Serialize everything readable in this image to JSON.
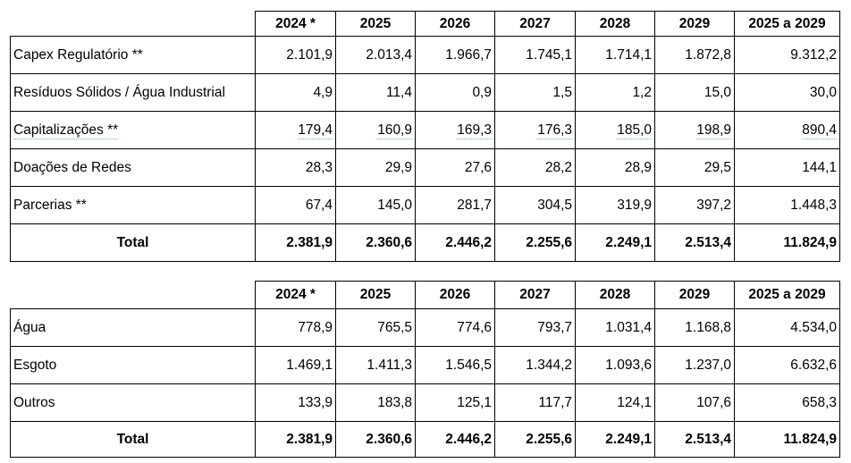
{
  "table_investment_type": {
    "headers": [
      "2024 *",
      "2025",
      "2026",
      "2027",
      "2028",
      "2029",
      "2025 a 2029"
    ],
    "rows": [
      {
        "label": "Capex Regulatório **",
        "values": [
          "2.101,9",
          "2.013,4",
          "1.966,7",
          "1.745,1",
          "1.714,1",
          "1.872,8",
          "9.312,2"
        ]
      },
      {
        "label": "Resíduos Sólidos / Água Industrial",
        "values": [
          "4,9",
          "11,4",
          "0,9",
          "1,5",
          "1,2",
          "15,0",
          "30,0"
        ]
      },
      {
        "label": "Capitalizações **",
        "values": [
          "179,4",
          "160,9",
          "169,3",
          "176,3",
          "185,0",
          "198,9",
          "890,4"
        ]
      },
      {
        "label": "Doações de Redes",
        "values": [
          "28,3",
          "29,9",
          "27,6",
          "28,2",
          "28,9",
          "29,5",
          "144,1"
        ]
      },
      {
        "label": "Parcerias **",
        "values": [
          "67,4",
          "145,0",
          "281,7",
          "304,5",
          "319,9",
          "397,2",
          "1.448,3"
        ]
      }
    ],
    "total": {
      "label": "Total",
      "values": [
        "2.381,9",
        "2.360,6",
        "2.446,2",
        "2.255,6",
        "2.249,1",
        "2.513,4",
        "11.824,9"
      ]
    }
  },
  "table_segment": {
    "headers": [
      "2024 *",
      "2025",
      "2026",
      "2027",
      "2028",
      "2029",
      "2025 a 2029"
    ],
    "rows": [
      {
        "label": "Água",
        "values": [
          "778,9",
          "765,5",
          "774,6",
          "793,7",
          "1.031,4",
          "1.168,8",
          "4.534,0"
        ]
      },
      {
        "label": "Esgoto",
        "values": [
          "1.469,1",
          "1.411,3",
          "1.546,5",
          "1.344,2",
          "1.093,6",
          "1.237,0",
          "6.632,6"
        ]
      },
      {
        "label": "Outros",
        "values": [
          "133,9",
          "183,8",
          "125,1",
          "117,7",
          "124,1",
          "107,6",
          "658,3"
        ]
      }
    ],
    "total": {
      "label": "Total",
      "values": [
        "2.381,9",
        "2.360,6",
        "2.446,2",
        "2.255,6",
        "2.249,1",
        "2.513,4",
        "11.824,9"
      ]
    }
  }
}
